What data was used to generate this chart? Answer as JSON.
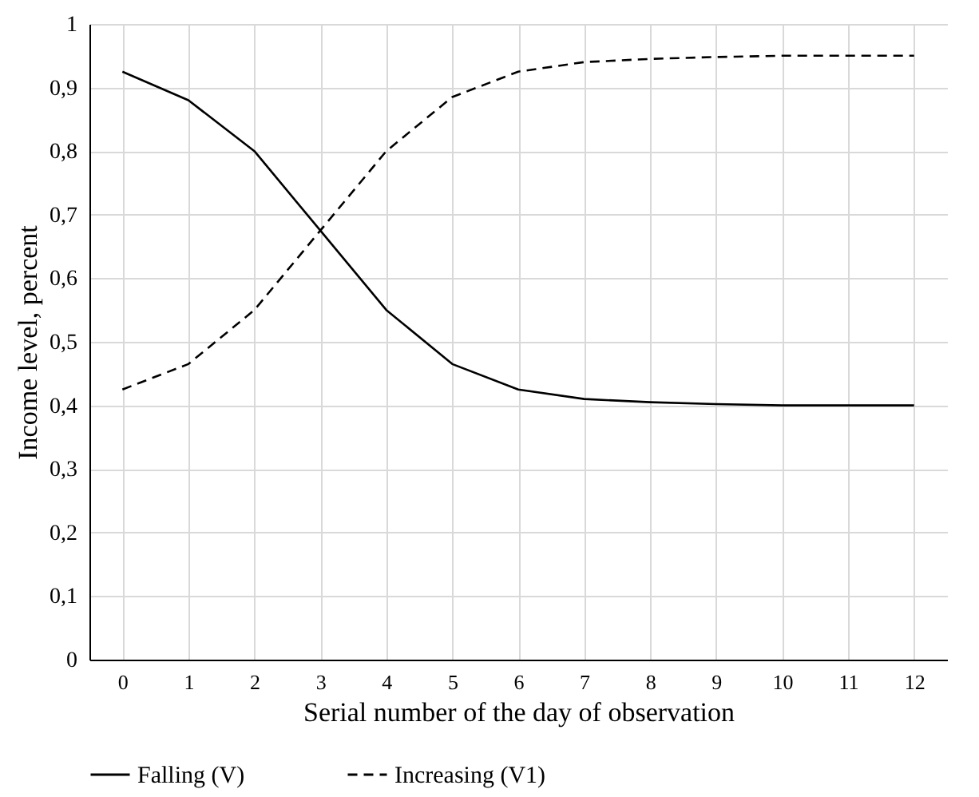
{
  "chart_data": {
    "type": "line",
    "xlabel": "Serial number of the day of observation",
    "ylabel": "Income level, percent",
    "x": [
      0,
      1,
      2,
      3,
      4,
      5,
      6,
      7,
      8,
      9,
      10,
      11,
      12
    ],
    "xlim": [
      -0.5,
      12.5
    ],
    "xticks": [
      0,
      1,
      2,
      3,
      4,
      5,
      6,
      7,
      8,
      9,
      10,
      11,
      12
    ],
    "series": [
      {
        "name": "Falling (V)",
        "color": "#000000",
        "line_style": "solid",
        "values": [
          0.925,
          0.88,
          0.8,
          0.675,
          0.55,
          0.465,
          0.425,
          0.41,
          0.405,
          0.402,
          0.4,
          0.4,
          0.4
        ]
      },
      {
        "name": "Increasing (V1)",
        "color": "#000000",
        "line_style": "dashed",
        "values": [
          0.425,
          0.465,
          0.55,
          0.675,
          0.8,
          0.885,
          0.925,
          0.94,
          0.945,
          0.948,
          0.95,
          0.95,
          0.95
        ]
      }
    ],
    "ylim": [
      0,
      1
    ],
    "yticks": [
      0,
      {
        "value": 0.1,
        "label": "0,1"
      },
      {
        "value": 0.2,
        "label": "0,2"
      },
      {
        "value": 0.3,
        "label": "0,3"
      },
      {
        "value": 0.4,
        "label": "0,4"
      },
      {
        "value": 0.5,
        "label": "0,5"
      },
      {
        "value": 0.6,
        "label": "0,6"
      },
      {
        "value": 0.7,
        "label": "0,7"
      },
      {
        "value": 0.8,
        "label": "0,8"
      },
      {
        "value": 0.9,
        "label": "0,9"
      },
      1
    ],
    "grid": true,
    "legend": "bottom",
    "marker": "none"
  }
}
